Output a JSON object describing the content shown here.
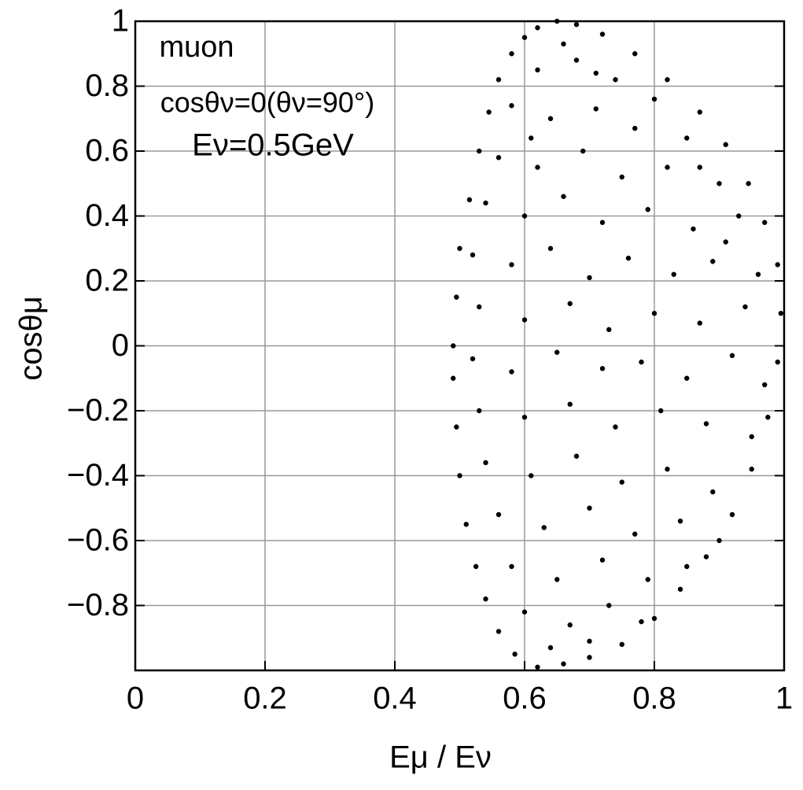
{
  "chart_data": {
    "type": "scatter",
    "x_label": "Eμ / Eν",
    "y_label": "cosθμ",
    "annotations": [
      "muon",
      "cosθν=0(θν=90°)",
      "Eν=0.5GeV"
    ],
    "color": "#000000",
    "grid": true,
    "xlim": [
      0,
      1
    ],
    "ylim": [
      -1,
      1
    ],
    "xticks": [
      0,
      0.2,
      0.4,
      0.6,
      0.8,
      1
    ],
    "yticks": [
      {
        "value": -0.8,
        "label": "−0.8"
      },
      {
        "value": -0.6,
        "label": "−0.6"
      },
      {
        "value": -0.4,
        "label": "−0.4"
      },
      {
        "value": -0.2,
        "label": "−0.2"
      },
      0,
      0.2,
      0.4,
      0.6,
      0.8,
      1
    ],
    "x": [
      0.65,
      0.62,
      0.6,
      0.58,
      0.56,
      0.545,
      0.53,
      0.515,
      0.5,
      0.495,
      0.49,
      0.49,
      0.495,
      0.5,
      0.51,
      0.525,
      0.54,
      0.56,
      0.585,
      0.62,
      0.66,
      0.7,
      0.75,
      0.8,
      0.84,
      0.88,
      0.92,
      0.95,
      0.975,
      0.99,
      0.995,
      0.99,
      0.97,
      0.945,
      0.91,
      0.87,
      0.82,
      0.77,
      0.72,
      0.68,
      0.62,
      0.68,
      0.74,
      0.8,
      0.58,
      0.64,
      0.71,
      0.77,
      0.85,
      0.56,
      0.62,
      0.69,
      0.75,
      0.82,
      0.9,
      0.54,
      0.6,
      0.66,
      0.72,
      0.79,
      0.86,
      0.93,
      0.52,
      0.58,
      0.64,
      0.7,
      0.76,
      0.83,
      0.89,
      0.96,
      0.53,
      0.6,
      0.67,
      0.73,
      0.8,
      0.87,
      0.94,
      0.52,
      0.58,
      0.65,
      0.72,
      0.78,
      0.85,
      0.92,
      0.97,
      0.53,
      0.6,
      0.67,
      0.74,
      0.81,
      0.88,
      0.95,
      0.54,
      0.61,
      0.68,
      0.75,
      0.82,
      0.89,
      0.56,
      0.63,
      0.7,
      0.77,
      0.84,
      0.9,
      0.58,
      0.65,
      0.72,
      0.79,
      0.85,
      0.6,
      0.67,
      0.73,
      0.78,
      0.64,
      0.7,
      0.66,
      0.71,
      0.61,
      0.87,
      0.91
    ],
    "values": [
      1.0,
      0.98,
      0.95,
      0.9,
      0.82,
      0.72,
      0.6,
      0.45,
      0.3,
      0.15,
      0.0,
      -0.1,
      -0.25,
      -0.4,
      -0.55,
      -0.68,
      -0.78,
      -0.88,
      -0.95,
      -0.99,
      -0.98,
      -0.96,
      -0.92,
      -0.84,
      -0.75,
      -0.65,
      -0.52,
      -0.38,
      -0.22,
      -0.05,
      0.1,
      0.25,
      0.38,
      0.5,
      0.62,
      0.72,
      0.82,
      0.9,
      0.96,
      0.99,
      0.85,
      0.88,
      0.82,
      0.76,
      0.74,
      0.7,
      0.73,
      0.67,
      0.64,
      0.58,
      0.55,
      0.6,
      0.52,
      0.55,
      0.5,
      0.44,
      0.4,
      0.46,
      0.38,
      0.42,
      0.36,
      0.4,
      0.28,
      0.25,
      0.3,
      0.21,
      0.27,
      0.22,
      0.26,
      0.22,
      0.12,
      0.08,
      0.13,
      0.05,
      0.1,
      0.07,
      0.12,
      -0.04,
      -0.08,
      -0.02,
      -0.07,
      -0.05,
      -0.1,
      -0.03,
      -0.12,
      -0.2,
      -0.22,
      -0.18,
      -0.25,
      -0.2,
      -0.24,
      -0.28,
      -0.36,
      -0.4,
      -0.34,
      -0.42,
      -0.38,
      -0.45,
      -0.52,
      -0.56,
      -0.5,
      -0.58,
      -0.54,
      -0.6,
      -0.68,
      -0.72,
      -0.66,
      -0.72,
      -0.68,
      -0.82,
      -0.86,
      -0.8,
      -0.85,
      -0.93,
      -0.91,
      0.93,
      0.84,
      0.64,
      0.55,
      0.32
    ]
  }
}
